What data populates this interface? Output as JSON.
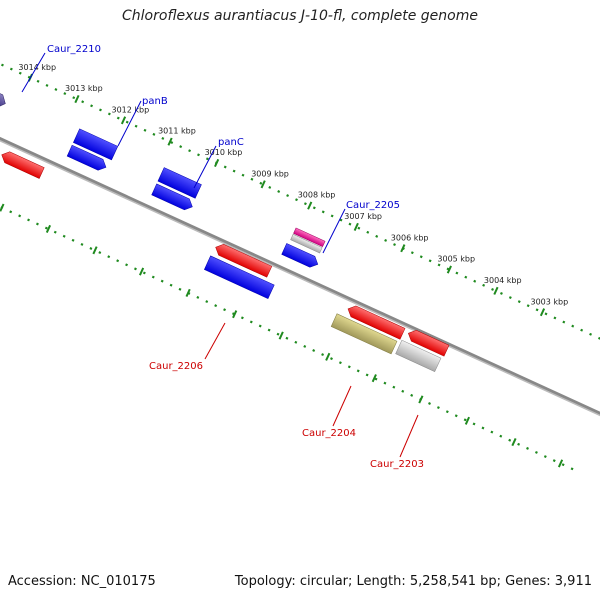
{
  "title": "Chloroflexus aurantiacus J-10-fl, complete genome",
  "footer": {
    "accession": "Accession: NC_010175",
    "summary": "Topology: circular; Length: 5,258,541 bp; Genes: 3,911"
  },
  "colors": {
    "backbone": "#808080",
    "ruler": "#1f8a1f",
    "forward_cds": "#ff1a1a",
    "reverse_cds": "#1a1aff",
    "label_forward": "#0000cc",
    "label_reverse": "#cc0000"
  },
  "ticks": [
    {
      "kbp": 3014,
      "label": "3014 kbp"
    },
    {
      "kbp": 3013,
      "label": "3013 kbp"
    },
    {
      "kbp": 3012,
      "label": "3012 kbp"
    },
    {
      "kbp": 3011,
      "label": "3011 kbp"
    },
    {
      "kbp": 3010,
      "label": "3010 kbp"
    },
    {
      "kbp": 3009,
      "label": "3009 kbp"
    },
    {
      "kbp": 3008,
      "label": "3008 kbp"
    },
    {
      "kbp": 3007,
      "label": "3007 kbp"
    },
    {
      "kbp": 3006,
      "label": "3006 kbp"
    },
    {
      "kbp": 3005,
      "label": "3005 kbp"
    },
    {
      "kbp": 3004,
      "label": "3004 kbp"
    },
    {
      "kbp": 3003,
      "label": "3003 kbp"
    }
  ],
  "gene_labels": [
    {
      "id": "caur-2210",
      "text": "Caur_2210",
      "strand": "forward"
    },
    {
      "id": "panb",
      "text": "panB",
      "strand": "forward"
    },
    {
      "id": "panc",
      "text": "panC",
      "strand": "forward"
    },
    {
      "id": "caur-2205",
      "text": "Caur_2205",
      "strand": "forward"
    },
    {
      "id": "caur-2206",
      "text": "Caur_2206",
      "strand": "reverse"
    },
    {
      "id": "caur-2204",
      "text": "Caur_2204",
      "strand": "reverse"
    },
    {
      "id": "caur-2203",
      "text": "Caur_2203",
      "strand": "reverse"
    }
  ]
}
